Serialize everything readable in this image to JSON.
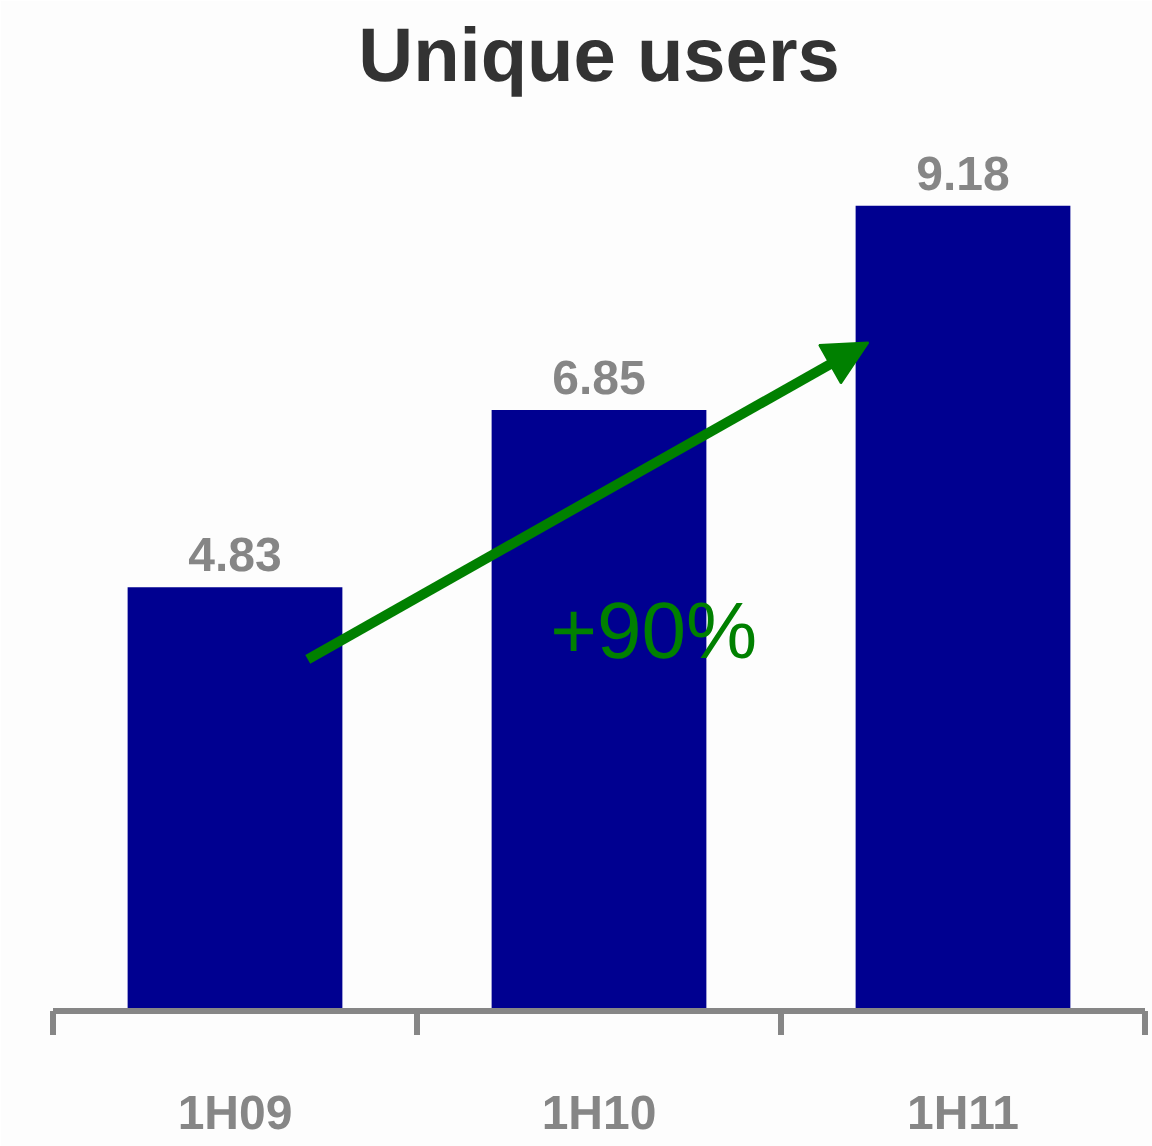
{
  "chart_data": {
    "type": "bar",
    "title": "Unique users",
    "categories": [
      "1H09",
      "1H10",
      "1H11"
    ],
    "values": [
      4.83,
      6.85,
      9.18
    ],
    "color": "#000090",
    "data_labels": true,
    "annotations": [
      "+90%"
    ]
  }
}
